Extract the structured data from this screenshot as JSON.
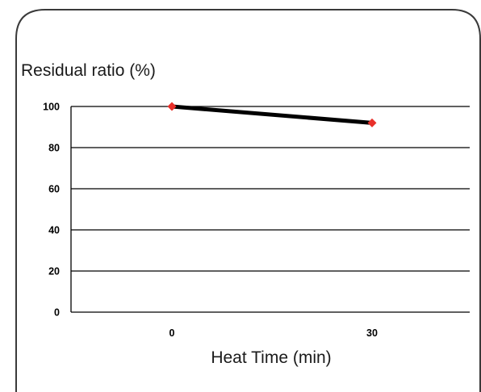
{
  "chart_data": {
    "type": "line",
    "title": "",
    "ylabel": "Residual ratio (%)",
    "xlabel": "Heat Time (min)",
    "categories": [
      "0",
      "30"
    ],
    "x": [
      0,
      30
    ],
    "series": [
      {
        "values": [
          100,
          92
        ],
        "line_color": "#000000",
        "marker_color": "#e8302a",
        "marker": "diamond"
      }
    ],
    "ylim": [
      0,
      100
    ],
    "yticks": [
      0,
      20,
      40,
      60,
      80,
      100
    ],
    "ytick_labels": [
      "0",
      "20",
      "40",
      "60",
      "80",
      "100"
    ],
    "grid": true,
    "legend": "none"
  }
}
